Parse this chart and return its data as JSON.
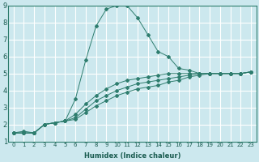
{
  "xlabel": "Humidex (Indice chaleur)",
  "ylabel": "",
  "xlim": [
    -0.5,
    23.5
  ],
  "ylim": [
    1,
    9
  ],
  "xticks": [
    0,
    1,
    2,
    3,
    4,
    5,
    6,
    7,
    8,
    9,
    10,
    11,
    12,
    13,
    14,
    15,
    16,
    17,
    18,
    19,
    20,
    21,
    22,
    23
  ],
  "yticks": [
    1,
    2,
    3,
    4,
    5,
    6,
    7,
    8,
    9
  ],
  "background_color": "#cce8ee",
  "grid_color": "#ffffff",
  "line_color": "#2e7d6e",
  "lines": [
    {
      "x": [
        0,
        1,
        2,
        3,
        4,
        5,
        6,
        7,
        8,
        9,
        10,
        11,
        12,
        13,
        14,
        15,
        16,
        17,
        18,
        19,
        20,
        21,
        22,
        23
      ],
      "y": [
        1.5,
        1.6,
        1.5,
        2.0,
        2.1,
        2.2,
        3.5,
        5.8,
        7.8,
        8.8,
        9.0,
        9.0,
        8.3,
        7.3,
        6.3,
        6.0,
        5.3,
        5.2,
        5.0,
        5.0,
        5.0,
        5.0,
        5.0,
        5.1
      ],
      "marker": "D",
      "markersize": 2,
      "linestyle": "-"
    },
    {
      "x": [
        0,
        1,
        2,
        3,
        4,
        5,
        6,
        7,
        8,
        9,
        10,
        11,
        12,
        13,
        14,
        15,
        16,
        17,
        18,
        19,
        20,
        21,
        22,
        23
      ],
      "y": [
        1.5,
        1.5,
        1.5,
        2.0,
        2.1,
        2.2,
        2.6,
        3.2,
        3.7,
        4.1,
        4.4,
        4.6,
        4.7,
        4.8,
        4.9,
        5.0,
        5.0,
        5.0,
        5.0,
        5.0,
        5.0,
        5.0,
        5.0,
        5.1
      ],
      "marker": "D",
      "markersize": 2,
      "linestyle": "-"
    },
    {
      "x": [
        0,
        1,
        2,
        3,
        4,
        5,
        6,
        7,
        8,
        9,
        10,
        11,
        12,
        13,
        14,
        15,
        16,
        17,
        18,
        19,
        20,
        21,
        22,
        23
      ],
      "y": [
        1.5,
        1.5,
        1.5,
        2.0,
        2.1,
        2.2,
        2.4,
        2.9,
        3.4,
        3.7,
        4.0,
        4.2,
        4.4,
        4.5,
        4.6,
        4.7,
        4.8,
        4.9,
        5.0,
        5.0,
        5.0,
        5.0,
        5.0,
        5.1
      ],
      "marker": "D",
      "markersize": 2,
      "linestyle": "-"
    },
    {
      "x": [
        0,
        1,
        2,
        3,
        4,
        5,
        6,
        7,
        8,
        9,
        10,
        11,
        12,
        13,
        14,
        15,
        16,
        17,
        18,
        19,
        20,
        21,
        22,
        23
      ],
      "y": [
        1.5,
        1.5,
        1.5,
        2.0,
        2.1,
        2.2,
        2.3,
        2.7,
        3.1,
        3.4,
        3.7,
        3.9,
        4.1,
        4.2,
        4.3,
        4.5,
        4.6,
        4.8,
        4.9,
        5.0,
        5.0,
        5.0,
        5.0,
        5.1
      ],
      "marker": "D",
      "markersize": 2,
      "linestyle": "-"
    }
  ],
  "tick_fontsize_x": 5,
  "tick_fontsize_y": 6,
  "xlabel_fontsize": 6,
  "xlabel_fontweight": "bold",
  "xlabel_color": "#1a5c50",
  "tick_color": "#1a5c50",
  "spine_color": "#2e7d6e",
  "linewidth": 0.7
}
